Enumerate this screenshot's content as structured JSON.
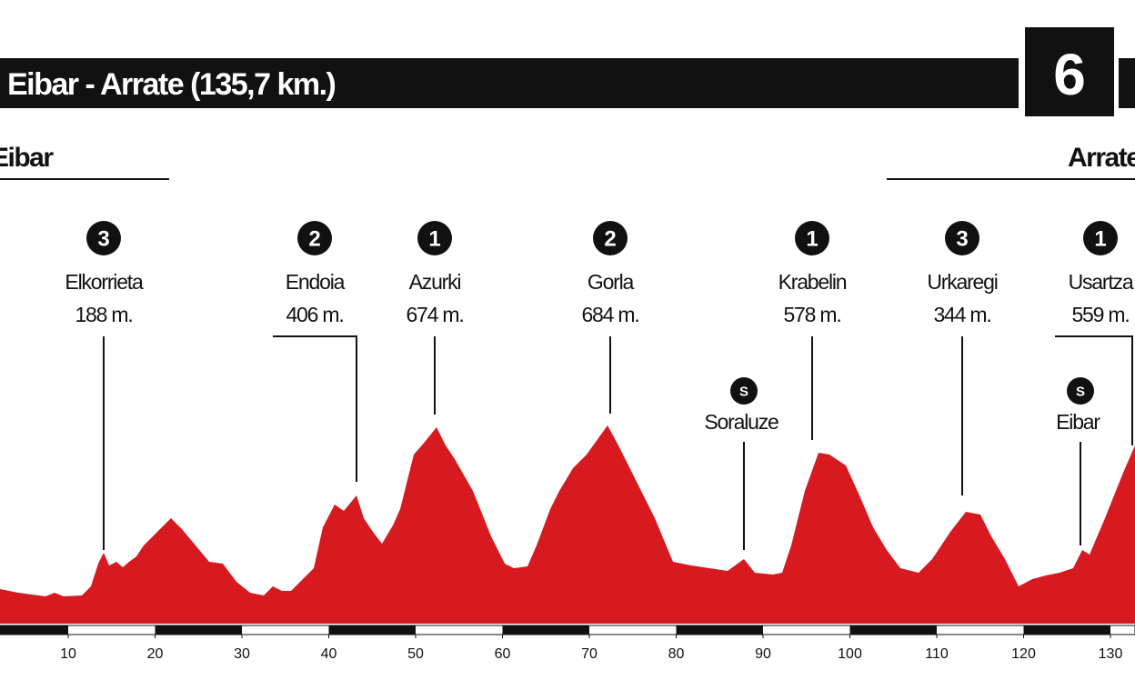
{
  "header": {
    "title": "Eibar - Arrate (135,7 km.)",
    "stage": "6",
    "start": "Eibar",
    "finish": "Arrate"
  },
  "climbs": [
    {
      "category": "3",
      "name": "Elkorrieta",
      "altitude": "188 m."
    },
    {
      "category": "2",
      "name": "Endoia",
      "altitude": "406 m."
    },
    {
      "category": "1",
      "name": "Azurki",
      "altitude": "674 m."
    },
    {
      "category": "2",
      "name": "Gorla",
      "altitude": "684 m."
    },
    {
      "category": "1",
      "name": "Krabelin",
      "altitude": "578 m."
    },
    {
      "category": "3",
      "name": "Urkaregi",
      "altitude": "344 m."
    },
    {
      "category": "1",
      "name": "Usartza",
      "altitude": "559 m."
    }
  ],
  "sprints": [
    {
      "symbol": "S",
      "name": "Soraluze"
    },
    {
      "symbol": "S",
      "name": "Eibar"
    }
  ],
  "axis": {
    "ticks": [
      10,
      20,
      30,
      40,
      50,
      60,
      70,
      80,
      90,
      100,
      110,
      120,
      130
    ]
  }
}
